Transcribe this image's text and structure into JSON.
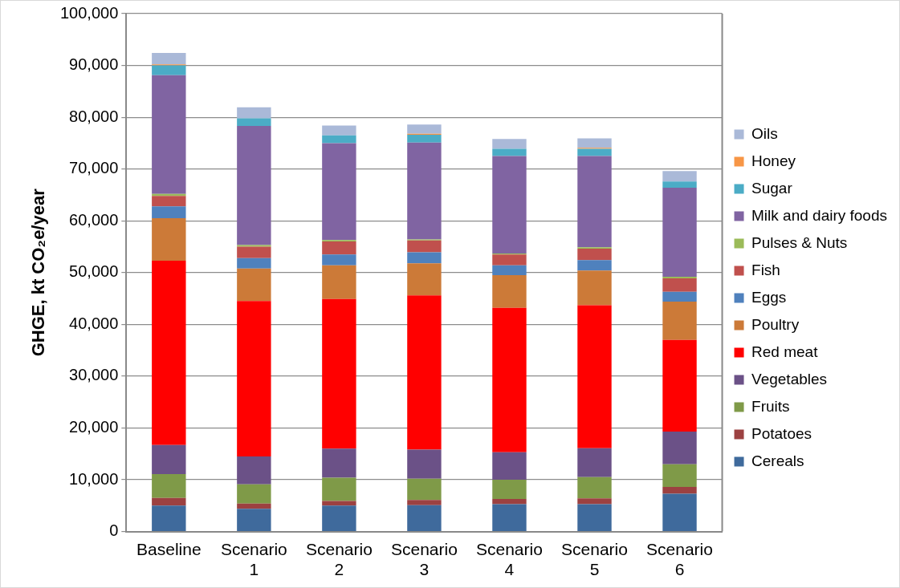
{
  "chart_data": {
    "type": "bar",
    "stacked": true,
    "ylabel": "GHGE, kt CO₂e/year",
    "categories": [
      "Baseline",
      "Scenario 1",
      "Scenario 2",
      "Scenario 3",
      "Scenario 4",
      "Scenario 5",
      "Scenario 6"
    ],
    "ylim": [
      0,
      100000
    ],
    "yticks": [
      0,
      {
        "value": 10000,
        "label": "10,000"
      },
      {
        "value": 20000,
        "label": "20,000"
      },
      {
        "value": 30000,
        "label": "30,000"
      },
      {
        "value": 40000,
        "label": "40,000"
      },
      {
        "value": 50000,
        "label": "50,000"
      },
      {
        "value": 60000,
        "label": "60,000"
      },
      {
        "value": 70000,
        "label": "70,000"
      },
      {
        "value": 80000,
        "label": "80,000"
      },
      {
        "value": 90000,
        "label": "90,000"
      },
      {
        "value": 100000,
        "label": "100,000"
      }
    ],
    "grid": "y",
    "legend": "right",
    "series": [
      {
        "name": "Cereals",
        "color": "#3f6a9c",
        "values": [
          5000,
          4400,
          5000,
          5100,
          5300,
          5300,
          7300
        ]
      },
      {
        "name": "Potatoes",
        "color": "#9c4141",
        "values": [
          1500,
          1000,
          900,
          1000,
          1000,
          1100,
          1300
        ]
      },
      {
        "name": "Fruits",
        "color": "#7f9a48",
        "values": [
          4600,
          3700,
          4500,
          4100,
          3700,
          4100,
          4400
        ]
      },
      {
        "name": "Vegetables",
        "color": "#6b5187",
        "values": [
          5600,
          5400,
          5600,
          5600,
          5300,
          5600,
          6300
        ]
      },
      {
        "name": "Red meat",
        "color": "#ff0000",
        "values": [
          35600,
          30000,
          28900,
          29800,
          27900,
          27600,
          17700
        ]
      },
      {
        "name": "Poultry",
        "color": "#cc7a38",
        "values": [
          8200,
          6300,
          6500,
          6200,
          6300,
          6700,
          7400
        ]
      },
      {
        "name": "Eggs",
        "color": "#4f81bd",
        "values": [
          2300,
          2000,
          2100,
          2100,
          1900,
          2000,
          1900
        ]
      },
      {
        "name": "Fish",
        "color": "#c0504d",
        "values": [
          2000,
          2200,
          2500,
          2300,
          2100,
          2200,
          2600
        ]
      },
      {
        "name": "Pulses & Nuts",
        "color": "#9bbb59",
        "values": [
          400,
          300,
          300,
          200,
          200,
          300,
          300
        ]
      },
      {
        "name": "Milk and dairy foods",
        "color": "#8064a2",
        "values": [
          22900,
          23000,
          18700,
          18700,
          18800,
          17600,
          17200
        ]
      },
      {
        "name": "Sugar",
        "color": "#4bacc6",
        "values": [
          1900,
          1500,
          1500,
          1500,
          1400,
          1400,
          1200
        ]
      },
      {
        "name": "Honey",
        "color": "#f79646",
        "values": [
          200,
          null,
          null,
          200,
          null,
          200,
          null
        ]
      },
      {
        "name": "Oils",
        "color": "#aab9d8",
        "values": [
          2200,
          2100,
          1900,
          1800,
          1900,
          1800,
          2000
        ]
      }
    ]
  }
}
